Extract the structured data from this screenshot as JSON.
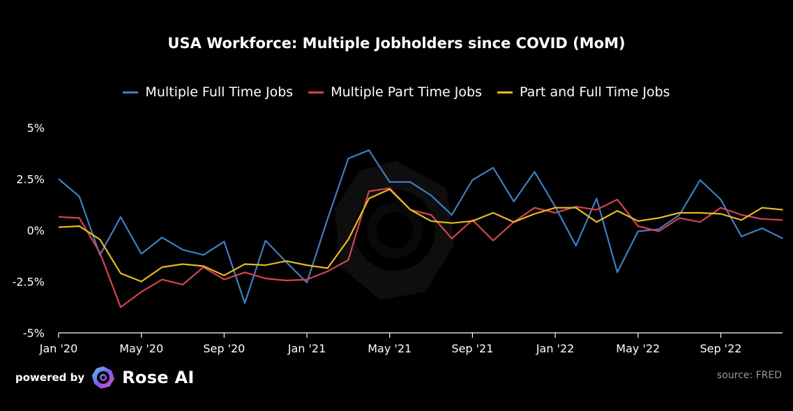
{
  "title": "USA Workforce: Multiple Jobholders since COVID (MoM)",
  "footer": {
    "powered_by": "powered by",
    "brand": "Rose AI",
    "source": "source: FRED"
  },
  "chart_data": {
    "type": "line",
    "title": "USA Workforce: Multiple Jobholders since COVID (MoM)",
    "legend_position": "top-center",
    "grid": false,
    "ylim": [
      -5,
      5
    ],
    "yticks": [
      5,
      2.5,
      0,
      -2.5,
      -5
    ],
    "ytick_labels": [
      "5%",
      "2.5%",
      "0%",
      "-2.5%",
      "-5%"
    ],
    "x": [
      "2020-01",
      "2020-02",
      "2020-03",
      "2020-04",
      "2020-05",
      "2020-06",
      "2020-07",
      "2020-08",
      "2020-09",
      "2020-10",
      "2020-11",
      "2020-12",
      "2021-01",
      "2021-02",
      "2021-03",
      "2021-04",
      "2021-05",
      "2021-06",
      "2021-07",
      "2021-08",
      "2021-09",
      "2021-10",
      "2021-11",
      "2021-12",
      "2022-01",
      "2022-02",
      "2022-03",
      "2022-04",
      "2022-05",
      "2022-06",
      "2022-07",
      "2022-08",
      "2022-09",
      "2022-10",
      "2022-11",
      "2022-12"
    ],
    "xticks": [
      "2020-01",
      "2020-05",
      "2020-09",
      "2021-01",
      "2021-05",
      "2021-09",
      "2022-01",
      "2022-05",
      "2022-09"
    ],
    "xtick_labels": [
      "Jan '20",
      "May '20",
      "Sep '20",
      "Jan '21",
      "May '21",
      "Sep '21",
      "Jan '22",
      "May '22",
      "Sep '22"
    ],
    "series": [
      {
        "name": "Multiple Full Time Jobs",
        "color": "#3f7fc4",
        "values": [
          2.5,
          1.65,
          -1.2,
          0.65,
          -1.15,
          -0.35,
          -0.95,
          -1.2,
          -0.55,
          -3.55,
          -0.5,
          -1.55,
          -2.55,
          0.55,
          3.5,
          3.9,
          2.35,
          2.35,
          1.7,
          0.75,
          2.45,
          3.05,
          1.4,
          2.85,
          1.15,
          -0.75,
          1.55,
          -2.05,
          -0.05,
          0.05,
          0.75,
          2.45,
          1.5,
          -0.3,
          0.1,
          -0.4
        ]
      },
      {
        "name": "Multiple Part Time Jobs",
        "color": "#d44450",
        "values": [
          0.65,
          0.6,
          -1.1,
          -3.75,
          -3.0,
          -2.4,
          -2.65,
          -1.8,
          -2.4,
          -2.05,
          -2.35,
          -2.45,
          -2.4,
          -2.0,
          -1.45,
          1.9,
          2.05,
          1.0,
          0.75,
          -0.4,
          0.5,
          -0.5,
          0.4,
          1.1,
          0.85,
          1.15,
          1.0,
          1.5,
          0.2,
          -0.05,
          0.6,
          0.4,
          1.1,
          0.75,
          0.55,
          0.5
        ]
      },
      {
        "name": "Part and Full Time Jobs",
        "color": "#e8b923",
        "values": [
          0.15,
          0.2,
          -0.45,
          -2.1,
          -2.5,
          -1.8,
          -1.65,
          -1.75,
          -2.2,
          -1.65,
          -1.7,
          -1.5,
          -1.7,
          -1.85,
          -0.45,
          1.55,
          2.0,
          1.0,
          0.45,
          0.35,
          0.45,
          0.85,
          0.4,
          0.8,
          1.1,
          1.1,
          0.4,
          0.95,
          0.45,
          0.6,
          0.85,
          0.85,
          0.8,
          0.5,
          1.1,
          1.0
        ]
      }
    ]
  }
}
